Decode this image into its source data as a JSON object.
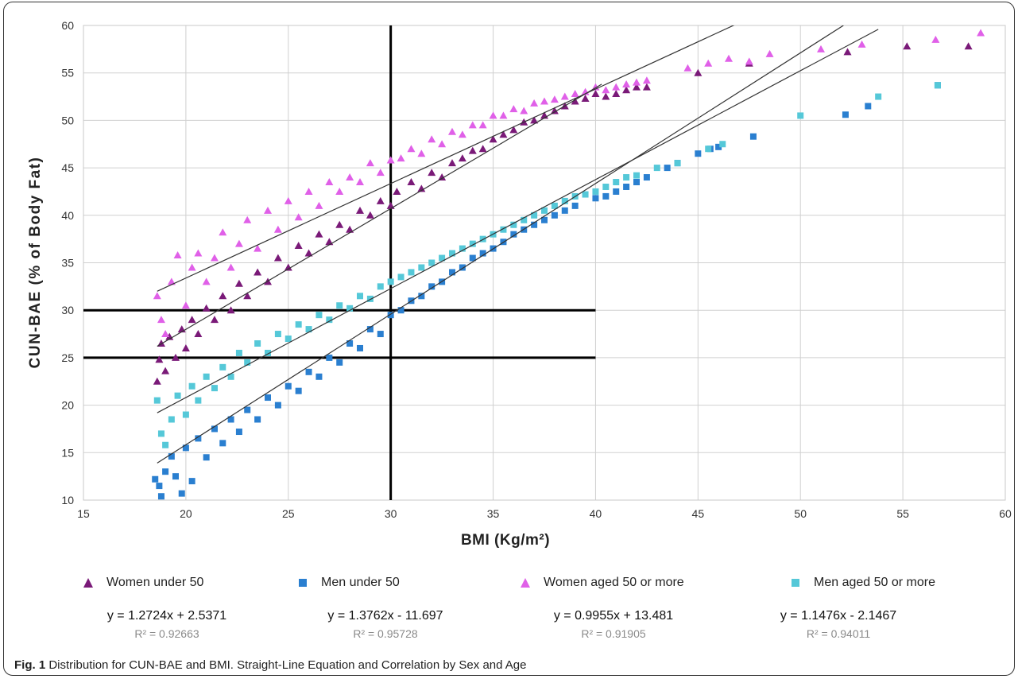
{
  "caption": {
    "label": "Fig. 1",
    "text": "Distribution for CUN-BAE and BMI. Straight-Line Equation and Correlation by Sex and Age"
  },
  "colors": {
    "women_under_50": "#7a1a78",
    "men_under_50": "#2a7fd0",
    "women_50_plus": "#e060e8",
    "men_50_plus": "#55c8d8"
  },
  "chart_data": {
    "type": "scatter",
    "xlabel": "BMI (Kg/m²)",
    "ylabel": "CUN-BAE (% of Body Fat)",
    "xlim": [
      15,
      60
    ],
    "ylim": [
      10,
      60
    ],
    "xticks": [
      15,
      20,
      25,
      30,
      35,
      40,
      45,
      50,
      55,
      60
    ],
    "yticks": [
      10,
      15,
      20,
      25,
      30,
      35,
      40,
      45,
      50,
      55,
      60
    ],
    "grid": true,
    "reference_lines": [
      {
        "orientation": "vertical",
        "x": 30,
        "y_from": 10,
        "y_to": 60
      },
      {
        "orientation": "horizontal",
        "y": 30,
        "x_from": 15,
        "x_to": 40
      },
      {
        "orientation": "horizontal",
        "y": 25,
        "x_from": 15,
        "x_to": 40
      }
    ],
    "series": [
      {
        "name": "Women under 50",
        "marker": "triangle",
        "color": "#7a1a78",
        "equation": "y = 1.2724x + 2.5371",
        "r2": "R² = 0.92663",
        "fit": {
          "slope": 1.2724,
          "intercept": 2.5371,
          "x_range": [
            18.6,
            40.3
          ]
        },
        "points": [
          [
            18.6,
            22.5
          ],
          [
            18.7,
            24.8
          ],
          [
            18.8,
            26.5
          ],
          [
            19.0,
            23.6
          ],
          [
            19.2,
            27.2
          ],
          [
            19.5,
            25.0
          ],
          [
            19.8,
            28.0
          ],
          [
            20.0,
            26.0
          ],
          [
            20.3,
            29.0
          ],
          [
            20.6,
            27.5
          ],
          [
            21.0,
            30.2
          ],
          [
            21.4,
            29.0
          ],
          [
            21.8,
            31.5
          ],
          [
            22.2,
            30.0
          ],
          [
            22.6,
            32.8
          ],
          [
            23.0,
            31.5
          ],
          [
            23.5,
            34.0
          ],
          [
            24.0,
            33.0
          ],
          [
            24.5,
            35.5
          ],
          [
            25.0,
            34.5
          ],
          [
            25.5,
            36.8
          ],
          [
            26.0,
            36.0
          ],
          [
            26.5,
            38.0
          ],
          [
            27.0,
            37.2
          ],
          [
            27.5,
            39.0
          ],
          [
            28.0,
            38.5
          ],
          [
            28.5,
            40.5
          ],
          [
            29.0,
            40.0
          ],
          [
            29.5,
            41.5
          ],
          [
            30.0,
            41.0
          ],
          [
            30.3,
            42.5
          ],
          [
            31.0,
            43.5
          ],
          [
            31.5,
            42.8
          ],
          [
            32.0,
            44.5
          ],
          [
            32.5,
            44.0
          ],
          [
            33.0,
            45.5
          ],
          [
            33.5,
            46.0
          ],
          [
            34.0,
            46.8
          ],
          [
            34.5,
            47.0
          ],
          [
            35.0,
            48.0
          ],
          [
            35.5,
            48.5
          ],
          [
            36.0,
            49.0
          ],
          [
            36.5,
            49.8
          ],
          [
            37.0,
            50.0
          ],
          [
            37.5,
            50.5
          ],
          [
            38.0,
            51.0
          ],
          [
            38.5,
            51.5
          ],
          [
            39.0,
            52.0
          ],
          [
            39.5,
            52.3
          ],
          [
            40.0,
            52.8
          ],
          [
            40.5,
            52.5
          ],
          [
            41.0,
            52.8
          ],
          [
            41.5,
            53.2
          ],
          [
            42.0,
            53.5
          ],
          [
            42.5,
            53.5
          ],
          [
            45.0,
            55.0
          ],
          [
            47.5,
            56.0
          ],
          [
            52.3,
            57.2
          ],
          [
            55.2,
            57.8
          ],
          [
            58.2,
            57.8
          ]
        ]
      },
      {
        "name": "Men under 50",
        "marker": "square",
        "color": "#2a7fd0",
        "equation": "y = 1.3762x - 11.697",
        "r2": "R² = 0.95728",
        "fit": {
          "slope": 1.3762,
          "intercept": -11.697,
          "x_range": [
            18.6,
            52.1
          ]
        },
        "points": [
          [
            18.5,
            12.2
          ],
          [
            18.7,
            11.5
          ],
          [
            18.8,
            10.4
          ],
          [
            19.0,
            13.0
          ],
          [
            19.3,
            14.6
          ],
          [
            19.5,
            12.5
          ],
          [
            19.8,
            10.7
          ],
          [
            20.0,
            15.5
          ],
          [
            20.3,
            12.0
          ],
          [
            20.6,
            16.5
          ],
          [
            21.0,
            14.5
          ],
          [
            21.4,
            17.5
          ],
          [
            21.8,
            16.0
          ],
          [
            22.2,
            18.5
          ],
          [
            22.6,
            17.2
          ],
          [
            23.0,
            19.5
          ],
          [
            23.5,
            18.5
          ],
          [
            24.0,
            20.8
          ],
          [
            24.5,
            20.0
          ],
          [
            25.0,
            22.0
          ],
          [
            25.5,
            21.5
          ],
          [
            26.0,
            23.5
          ],
          [
            26.5,
            23.0
          ],
          [
            27.0,
            25.0
          ],
          [
            27.5,
            24.5
          ],
          [
            28.0,
            26.5
          ],
          [
            28.5,
            26.0
          ],
          [
            29.0,
            28.0
          ],
          [
            29.5,
            27.5
          ],
          [
            30.0,
            29.5
          ],
          [
            30.5,
            30.0
          ],
          [
            31.0,
            31.0
          ],
          [
            31.5,
            31.5
          ],
          [
            32.0,
            32.5
          ],
          [
            32.5,
            33.0
          ],
          [
            33.0,
            34.0
          ],
          [
            33.5,
            34.5
          ],
          [
            34.0,
            35.5
          ],
          [
            34.5,
            36.0
          ],
          [
            35.0,
            36.5
          ],
          [
            35.5,
            37.2
          ],
          [
            36.0,
            38.0
          ],
          [
            36.5,
            38.5
          ],
          [
            37.0,
            39.0
          ],
          [
            37.5,
            39.5
          ],
          [
            38.0,
            40.0
          ],
          [
            38.5,
            40.5
          ],
          [
            39.0,
            41.0
          ],
          [
            40.0,
            41.8
          ],
          [
            40.5,
            42.0
          ],
          [
            41.0,
            42.5
          ],
          [
            41.5,
            43.0
          ],
          [
            42.0,
            43.5
          ],
          [
            42.5,
            44.0
          ],
          [
            43.5,
            45.0
          ],
          [
            44.0,
            45.5
          ],
          [
            45.0,
            46.5
          ],
          [
            45.6,
            47.0
          ],
          [
            46.0,
            47.2
          ],
          [
            47.7,
            48.3
          ],
          [
            52.2,
            50.6
          ],
          [
            53.3,
            51.5
          ],
          [
            56.7,
            53.7
          ]
        ]
      },
      {
        "name": "Women aged 50 or more",
        "marker": "triangle",
        "color": "#e060e8",
        "equation": "y = 0.9955x + 13.481",
        "r2": "R² = 0.91905",
        "fit": {
          "slope": 0.9955,
          "intercept": 13.481,
          "x_range": [
            18.6,
            46.8
          ]
        },
        "points": [
          [
            18.6,
            31.5
          ],
          [
            18.8,
            29.0
          ],
          [
            19.0,
            27.5
          ],
          [
            19.3,
            33.0
          ],
          [
            19.6,
            35.8
          ],
          [
            20.0,
            30.5
          ],
          [
            20.3,
            34.5
          ],
          [
            20.6,
            36.0
          ],
          [
            21.0,
            33.0
          ],
          [
            21.4,
            35.5
          ],
          [
            21.8,
            38.2
          ],
          [
            22.2,
            34.5
          ],
          [
            22.6,
            37.0
          ],
          [
            23.0,
            39.5
          ],
          [
            23.5,
            36.5
          ],
          [
            24.0,
            40.5
          ],
          [
            24.5,
            38.5
          ],
          [
            25.0,
            41.5
          ],
          [
            25.5,
            39.8
          ],
          [
            26.0,
            42.5
          ],
          [
            26.5,
            41.0
          ],
          [
            27.0,
            43.5
          ],
          [
            27.5,
            42.5
          ],
          [
            28.0,
            44.0
          ],
          [
            28.5,
            43.5
          ],
          [
            29.0,
            45.5
          ],
          [
            29.5,
            44.5
          ],
          [
            30.0,
            45.8
          ],
          [
            30.5,
            46.0
          ],
          [
            31.0,
            47.0
          ],
          [
            31.5,
            46.5
          ],
          [
            32.0,
            48.0
          ],
          [
            32.5,
            47.5
          ],
          [
            33.0,
            48.8
          ],
          [
            33.5,
            48.5
          ],
          [
            34.0,
            49.5
          ],
          [
            34.5,
            49.5
          ],
          [
            35.0,
            50.5
          ],
          [
            35.5,
            50.5
          ],
          [
            36.0,
            51.2
          ],
          [
            36.5,
            51.0
          ],
          [
            37.0,
            51.8
          ],
          [
            37.5,
            52.0
          ],
          [
            38.0,
            52.2
          ],
          [
            38.5,
            52.5
          ],
          [
            39.0,
            52.8
          ],
          [
            39.5,
            53.0
          ],
          [
            40.0,
            53.5
          ],
          [
            40.5,
            53.2
          ],
          [
            41.0,
            53.5
          ],
          [
            41.5,
            53.8
          ],
          [
            42.0,
            54.0
          ],
          [
            42.5,
            54.2
          ],
          [
            44.5,
            55.5
          ],
          [
            45.5,
            56.0
          ],
          [
            46.5,
            56.5
          ],
          [
            47.5,
            56.2
          ],
          [
            48.5,
            57.0
          ],
          [
            51.0,
            57.5
          ],
          [
            53.0,
            58.0
          ],
          [
            56.6,
            58.5
          ],
          [
            58.8,
            59.2
          ]
        ]
      },
      {
        "name": "Men aged 50 or more",
        "marker": "square",
        "color": "#55c8d8",
        "equation": "y = 1.1476x - 2.1467",
        "r2": "R² = 0.94011",
        "fit": {
          "slope": 1.1476,
          "intercept": -2.1467,
          "x_range": [
            18.6,
            53.8
          ]
        },
        "points": [
          [
            18.6,
            20.5
          ],
          [
            18.8,
            17.0
          ],
          [
            19.0,
            15.8
          ],
          [
            19.3,
            18.5
          ],
          [
            19.6,
            21.0
          ],
          [
            20.0,
            19.0
          ],
          [
            20.3,
            22.0
          ],
          [
            20.6,
            20.5
          ],
          [
            21.0,
            23.0
          ],
          [
            21.4,
            21.8
          ],
          [
            21.8,
            24.0
          ],
          [
            22.2,
            23.0
          ],
          [
            22.6,
            25.5
          ],
          [
            23.0,
            24.5
          ],
          [
            23.5,
            26.5
          ],
          [
            24.0,
            25.5
          ],
          [
            24.5,
            27.5
          ],
          [
            25.0,
            27.0
          ],
          [
            25.5,
            28.5
          ],
          [
            26.0,
            28.0
          ],
          [
            26.5,
            29.5
          ],
          [
            27.0,
            29.0
          ],
          [
            27.5,
            30.5
          ],
          [
            28.0,
            30.2
          ],
          [
            28.5,
            31.5
          ],
          [
            29.0,
            31.2
          ],
          [
            29.5,
            32.5
          ],
          [
            30.0,
            33.0
          ],
          [
            30.5,
            33.5
          ],
          [
            31.0,
            34.0
          ],
          [
            31.5,
            34.5
          ],
          [
            32.0,
            35.0
          ],
          [
            32.5,
            35.5
          ],
          [
            33.0,
            36.0
          ],
          [
            33.5,
            36.5
          ],
          [
            34.0,
            37.0
          ],
          [
            34.5,
            37.5
          ],
          [
            35.0,
            38.0
          ],
          [
            35.5,
            38.5
          ],
          [
            36.0,
            39.0
          ],
          [
            36.5,
            39.5
          ],
          [
            37.0,
            40.0
          ],
          [
            37.5,
            40.5
          ],
          [
            38.0,
            41.0
          ],
          [
            38.5,
            41.5
          ],
          [
            39.0,
            42.0
          ],
          [
            39.5,
            42.2
          ],
          [
            40.0,
            42.5
          ],
          [
            40.5,
            43.0
          ],
          [
            41.0,
            43.5
          ],
          [
            41.5,
            44.0
          ],
          [
            42.0,
            44.2
          ],
          [
            43.0,
            45.0
          ],
          [
            44.0,
            45.5
          ],
          [
            45.5,
            47.0
          ],
          [
            46.2,
            47.5
          ],
          [
            50.0,
            50.5
          ],
          [
            53.8,
            52.5
          ],
          [
            56.7,
            53.7
          ]
        ]
      }
    ]
  }
}
